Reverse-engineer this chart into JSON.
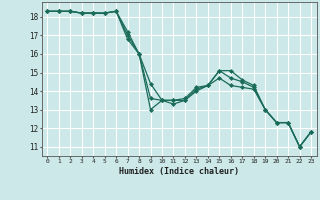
{
  "title": "",
  "xlabel": "Humidex (Indice chaleur)",
  "background_color": "#cce8e8",
  "grid_color": "#ffffff",
  "line_color": "#1a6b5a",
  "xlim": [
    -0.5,
    23.5
  ],
  "ylim": [
    10.5,
    18.8
  ],
  "yticks": [
    11,
    12,
    13,
    14,
    15,
    16,
    17,
    18
  ],
  "xticks": [
    0,
    1,
    2,
    3,
    4,
    5,
    6,
    7,
    8,
    9,
    10,
    11,
    12,
    13,
    14,
    15,
    16,
    17,
    18,
    19,
    20,
    21,
    22,
    23
  ],
  "series": [
    [
      18.3,
      18.3,
      18.3,
      18.2,
      18.2,
      18.2,
      18.3,
      17.0,
      16.0,
      13.0,
      13.5,
      13.3,
      13.5,
      14.1,
      14.3,
      15.1,
      14.7,
      14.5,
      14.2,
      13.0,
      12.3,
      12.3,
      11.0,
      11.8
    ],
    [
      18.3,
      18.3,
      18.3,
      18.2,
      18.2,
      18.2,
      18.3,
      16.8,
      16.0,
      13.6,
      13.5,
      13.5,
      13.6,
      14.2,
      14.3,
      15.1,
      15.1,
      14.6,
      14.3,
      13.0,
      12.3,
      12.3,
      11.0,
      11.8
    ],
    [
      18.3,
      18.3,
      18.3,
      18.2,
      18.2,
      18.2,
      18.3,
      17.2,
      16.0,
      14.4,
      13.5,
      13.5,
      13.5,
      14.0,
      14.3,
      14.7,
      14.3,
      14.2,
      14.1,
      13.0,
      12.3,
      12.3,
      11.0,
      11.8
    ]
  ]
}
